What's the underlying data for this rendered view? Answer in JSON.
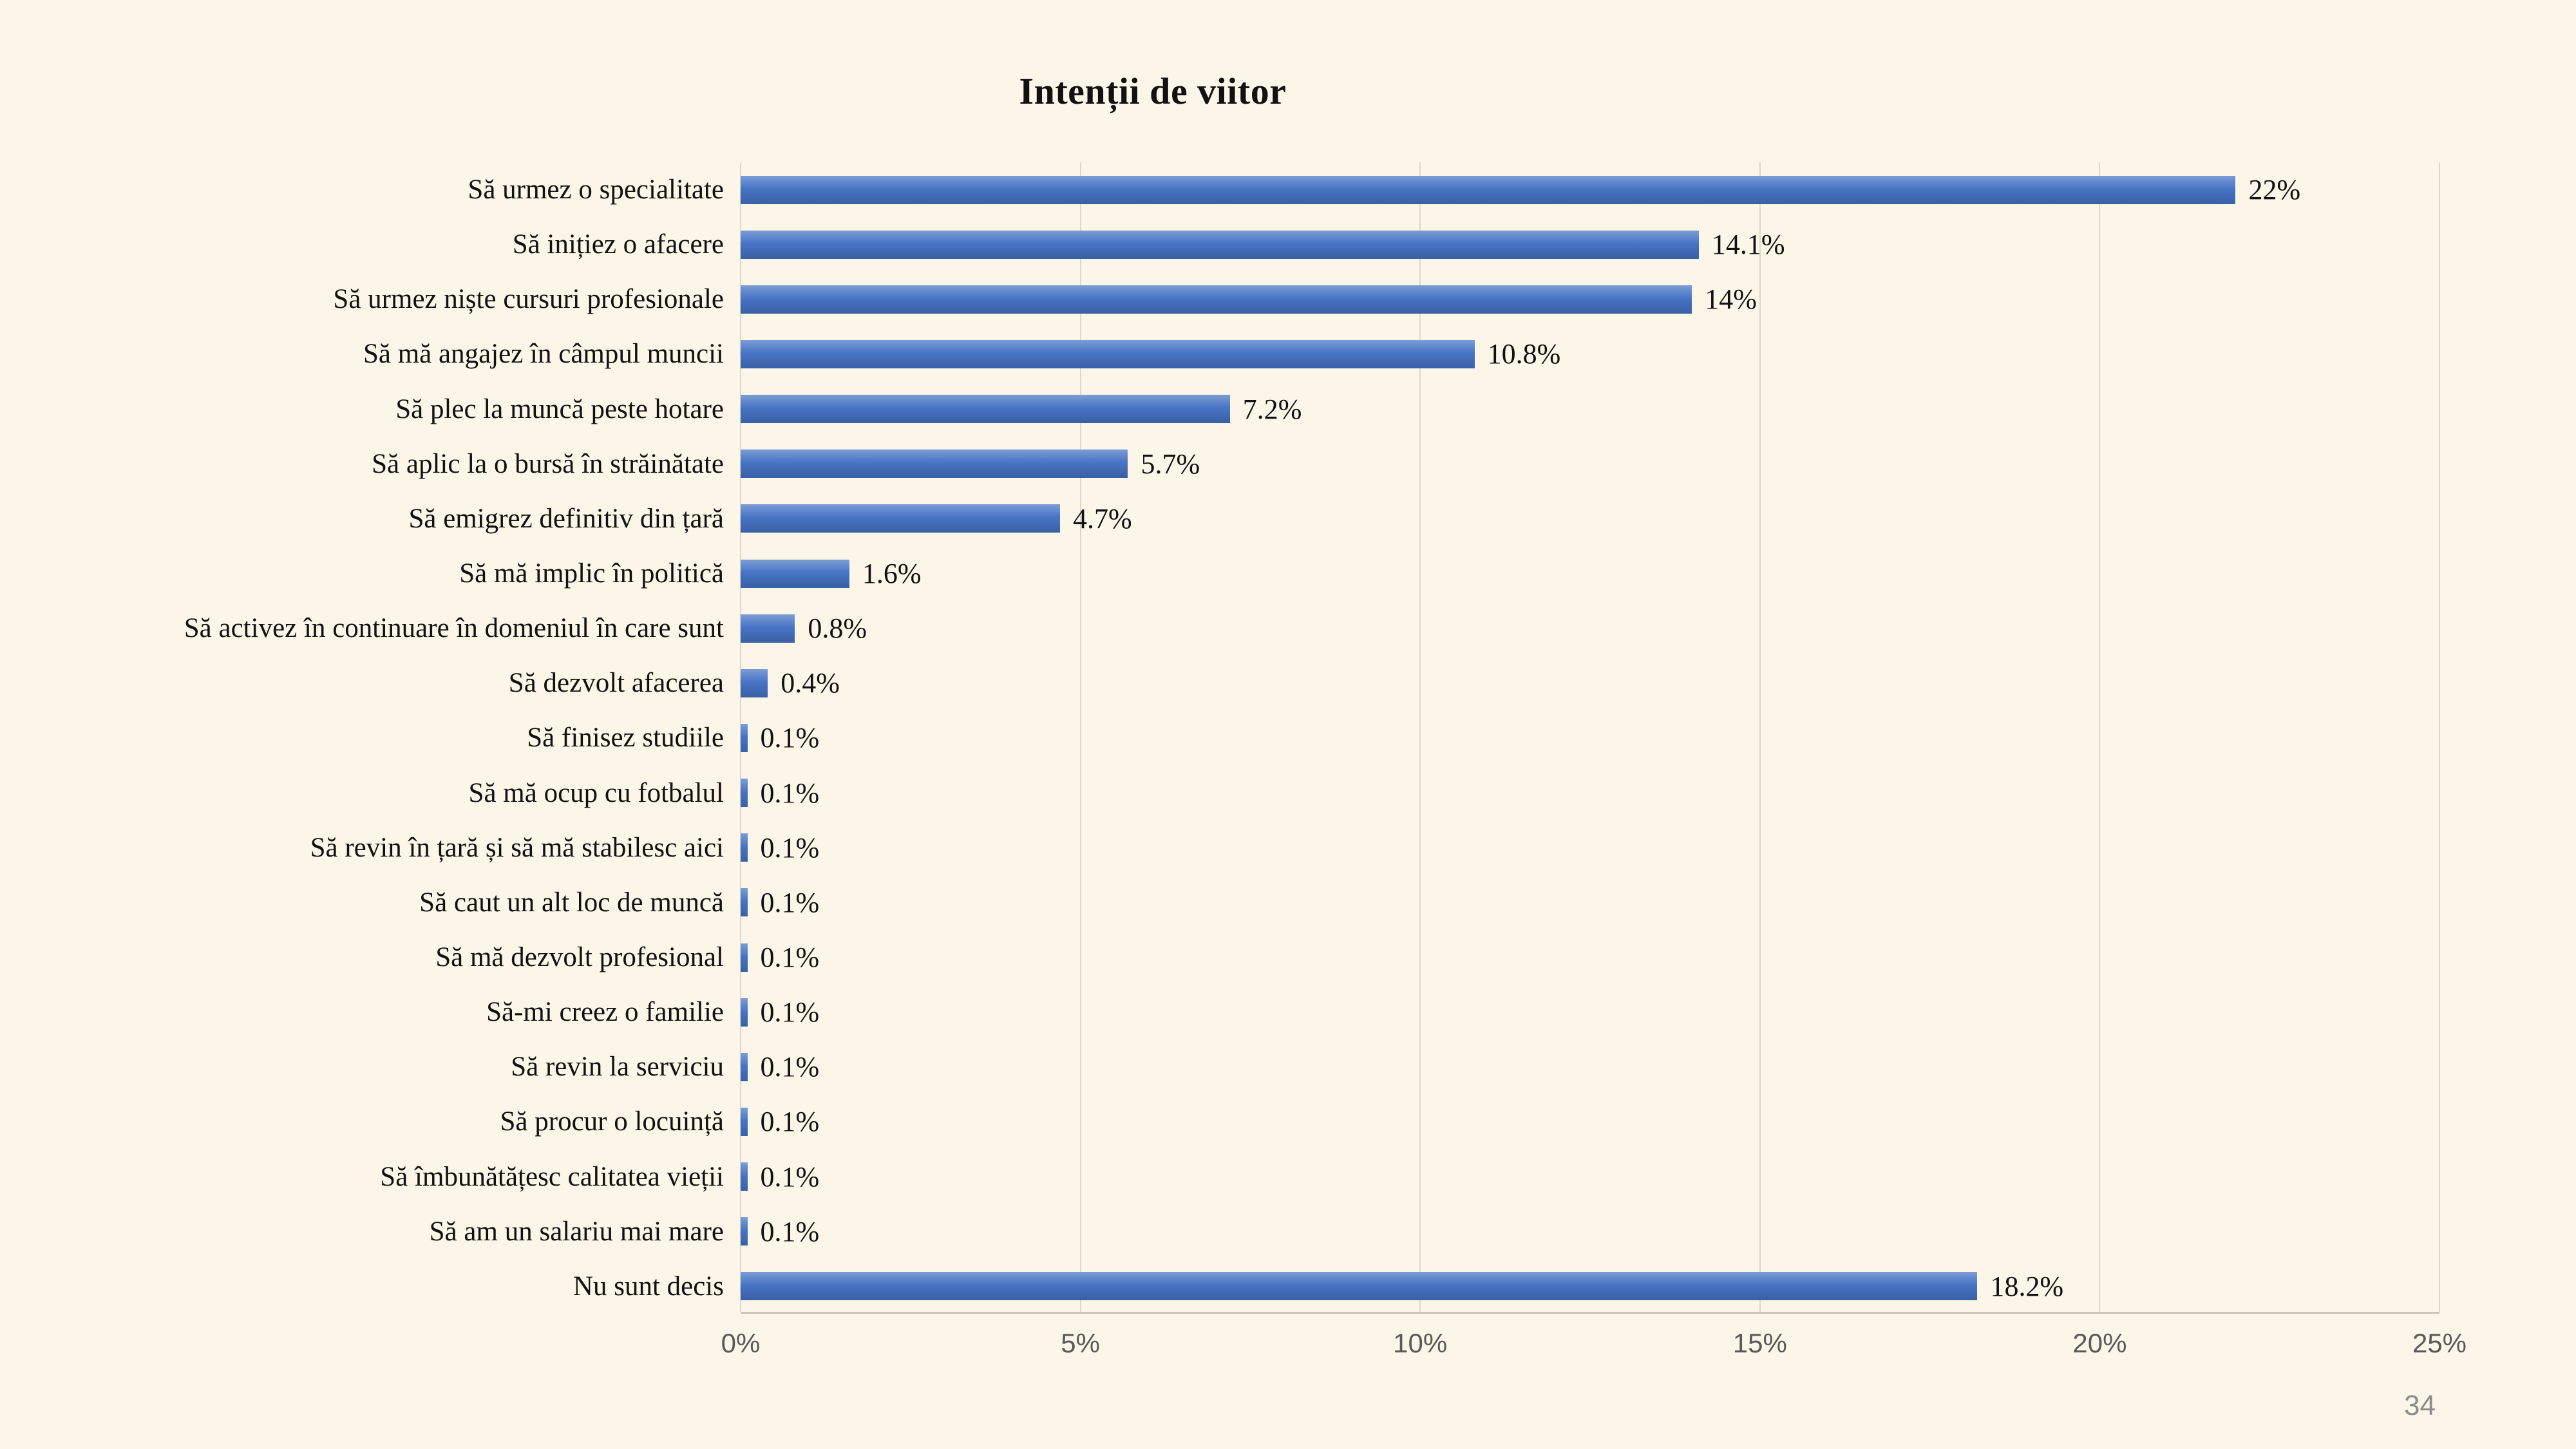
{
  "slide": {
    "page_number": "34",
    "background_color": "#FBF6E7"
  },
  "chart_data": {
    "type": "bar",
    "orientation": "horizontal",
    "title": "Intenții de viitor",
    "categories": [
      "Să urmez o specialitate",
      "Să inițiez o afacere",
      "Să urmez niște cursuri profesionale",
      "Să mă angajez în câmpul muncii",
      "Să plec la muncă peste hotare",
      "Să aplic la o bursă în străinătate",
      "Să emigrez definitiv din țară",
      "Să mă implic în politică",
      "Să activez în continuare în domeniul în care sunt",
      "Să dezvolt afacerea",
      "Să finisez studiile",
      "Să mă ocup cu fotbalul",
      "Să revin în țară și să mă stabilesc aici",
      "Să caut un alt loc de muncă",
      "Să mă dezvolt profesional",
      "Să-mi creez o familie",
      "Să revin la serviciu",
      "Să procur o locuință",
      "Să îmbunătățesc calitatea vieții",
      "Să am un salariu mai mare",
      "Nu sunt decis"
    ],
    "values": [
      22,
      14.1,
      14,
      10.8,
      7.2,
      5.7,
      4.7,
      1.6,
      0.8,
      0.4,
      0.1,
      0.1,
      0.1,
      0.1,
      0.1,
      0.1,
      0.1,
      0.1,
      0.1,
      0.1,
      18.2
    ],
    "value_labels": [
      "22%",
      "14.1%",
      "14%",
      "10.8%",
      "7.2%",
      "5.7%",
      "4.7%",
      "1.6%",
      "0.8%",
      "0.4%",
      "0.1%",
      "0.1%",
      "0.1%",
      "0.1%",
      "0.1%",
      "0.1%",
      "0.1%",
      "0.1%",
      "0.1%",
      "0.1%",
      "18.2%"
    ],
    "x_tick_labels": [
      "0%",
      "5%",
      "10%",
      "15%",
      "20%",
      "25%"
    ],
    "x_tick_values": [
      0,
      5,
      10,
      15,
      20,
      25
    ],
    "xlim": [
      0,
      25
    ],
    "xlabel": "",
    "ylabel": "",
    "bar_color": "#4472C4",
    "grid": true,
    "legend_position": "none"
  }
}
